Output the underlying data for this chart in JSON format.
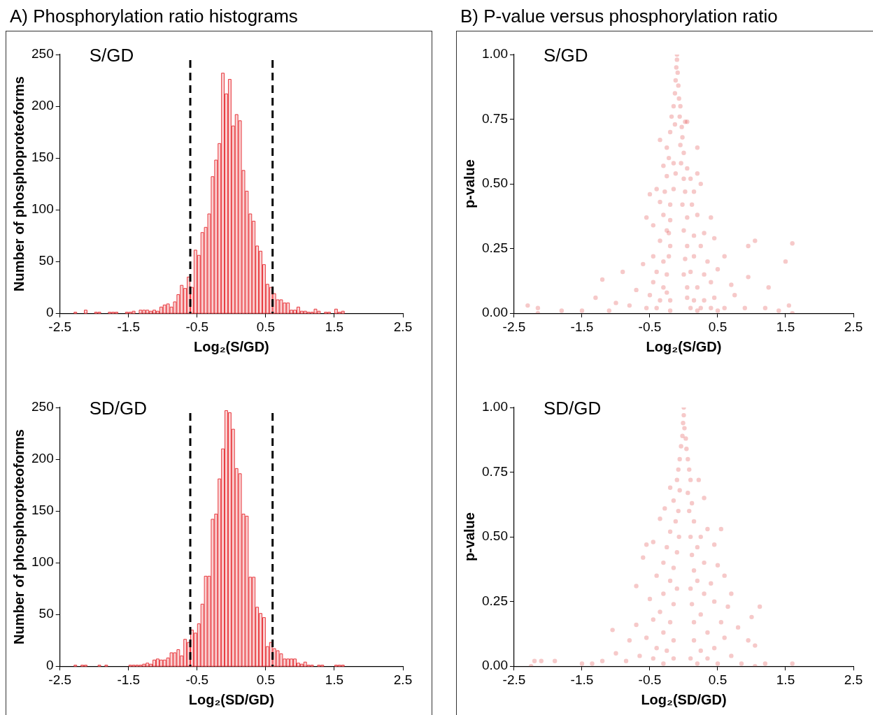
{
  "chart_data": [
    {
      "type": "histogram",
      "title": "A) Phosphorylation ratio histograms",
      "xlabel": "Log₂(S/GD)",
      "ylabel": "Number of phosphoproteoforms",
      "annotations": [
        "S/GD"
      ],
      "color": "#e8383d",
      "bins": [
        -2.5,
        -2.45,
        -2.4,
        -2.35,
        -2.3,
        -2.25,
        -2.2,
        -2.15,
        -2.1,
        -2.05,
        -2,
        -1.95,
        -1.9,
        -1.85,
        -1.8,
        -1.75,
        -1.7,
        -1.65,
        -1.6,
        -1.55,
        -1.5,
        -1.45,
        -1.4,
        -1.35,
        -1.3,
        -1.25,
        -1.2,
        -1.15,
        -1.1,
        -1.05,
        -1,
        -0.95,
        -0.9,
        -0.85,
        -0.8,
        -0.75,
        -0.7,
        -0.65,
        -0.6,
        -0.55,
        -0.5,
        -0.45,
        -0.4,
        -0.35,
        -0.3,
        -0.25,
        -0.2,
        -0.15,
        -0.1,
        -0.05,
        0,
        0.05,
        0.1,
        0.15,
        0.2,
        0.25,
        0.3,
        0.35,
        0.4,
        0.45,
        0.5,
        0.55,
        0.6,
        0.65,
        0.7,
        0.75,
        0.8,
        0.85,
        0.9,
        0.95,
        1,
        1.05,
        1.1,
        1.15,
        1.2,
        1.25,
        1.3,
        1.35,
        1.4,
        1.45,
        1.5,
        1.55,
        1.6,
        1.65,
        1.7,
        1.75,
        1.8,
        1.85,
        1.9,
        1.95,
        2,
        2.05,
        2.1,
        2.15,
        2.2,
        2.25,
        2.3,
        2.35,
        2.4,
        2.45,
        2.5
      ],
      "values": [
        0,
        0,
        0,
        0,
        1,
        0,
        0,
        3,
        0,
        0,
        1,
        1,
        0,
        0,
        1,
        1,
        1,
        0,
        0,
        1,
        1,
        2,
        0,
        3,
        3,
        3,
        2,
        3,
        2,
        6,
        8,
        9,
        6,
        11,
        18,
        27,
        24,
        35,
        25,
        61,
        56,
        78,
        83,
        96,
        132,
        148,
        164,
        232,
        212,
        226,
        181,
        192,
        186,
        138,
        118,
        96,
        89,
        65,
        60,
        47,
        28,
        25,
        19,
        13,
        13,
        10,
        10,
        3,
        3,
        6,
        2,
        2,
        1,
        1,
        4,
        2,
        0,
        1,
        1,
        0,
        4,
        1,
        2,
        0,
        0,
        0,
        0,
        0,
        0,
        0,
        0,
        0,
        0,
        0,
        0,
        0,
        0,
        0,
        0,
        0
      ],
      "xlim": [
        -2.5,
        2.5
      ],
      "xticks": [
        -2.5,
        -1.5,
        -0.5,
        0.5,
        1.5,
        2.5
      ],
      "ylim": [
        0,
        250
      ],
      "yticks": [
        0,
        50,
        100,
        150,
        200,
        250
      ],
      "ref_lines": [
        {
          "axis": "x",
          "value": -0.6,
          "color": "#000000",
          "line_style": "dashed"
        },
        {
          "axis": "x",
          "value": 0.6,
          "color": "#000000",
          "line_style": "dashed"
        }
      ]
    },
    {
      "type": "scatter",
      "title": "B) P-value versus phosphorylation ratio",
      "xlabel": "Log₂(S/GD)",
      "ylabel": "p-value",
      "annotations": [
        "S/GD"
      ],
      "color": "#e03c3c",
      "marker": "circle",
      "x": [
        -0.1,
        -0.1,
        -0.11,
        -0.09,
        -0.12,
        -0.08,
        -0.13,
        -0.07,
        -0.15,
        -0.05,
        -0.18,
        -0.06,
        -0.13,
        -0.03,
        0.02,
        0.05,
        -0.2,
        -0.02,
        -0.35,
        -0.25,
        -0.05,
        0,
        0.2,
        -0.22,
        -0.15,
        -0.04,
        0.05,
        -0.3,
        -0.25,
        -0.12,
        0,
        0.1,
        0.2,
        -0.4,
        -0.28,
        -0.15,
        0.02,
        0.15,
        0.25,
        -0.5,
        -0.35,
        -0.2,
        -0.02,
        0.12,
        -0.3,
        -0.2,
        0.05,
        0.2,
        -0.55,
        -0.45,
        0.4,
        -0.25,
        -0.22,
        0,
        0.15,
        0.3,
        -0.35,
        -0.2,
        0.05,
        0.25,
        0.45,
        1.05,
        1.6,
        0.95,
        -0.45,
        -0.3,
        -0.22,
        0.02,
        0.15,
        0.35,
        0.6,
        1.5,
        -0.6,
        -0.4,
        -0.25,
        0,
        0.1,
        0.3,
        0.5,
        -0.9,
        -0.45,
        -0.3,
        -0.25,
        0.05,
        0.2,
        0.4,
        0.7,
        0.95,
        -1.2,
        -0.7,
        -0.5,
        -0.35,
        -0.2,
        0.05,
        0.15,
        0.3,
        0.45,
        0.75,
        1.25,
        -1.3,
        -1,
        -0.8,
        -0.55,
        -0.4,
        0.1,
        0.25,
        0.4,
        0.6,
        0.9,
        1.55,
        -2.3,
        -2.15,
        -1.8,
        -1.5,
        -1.1,
        -0.2,
        0.2,
        0.5,
        1.2,
        1.4,
        -2.15,
        1.6
      ],
      "values": [
        1,
        0.98,
        0.95,
        0.93,
        0.9,
        0.88,
        0.85,
        0.83,
        0.8,
        0.8,
        0.76,
        0.76,
        0.73,
        0.72,
        0.74,
        0.74,
        0.7,
        0.68,
        0.67,
        0.64,
        0.65,
        0.62,
        0.64,
        0.6,
        0.58,
        0.58,
        0.56,
        0.57,
        0.53,
        0.54,
        0.52,
        0.52,
        0.54,
        0.48,
        0.47,
        0.48,
        0.47,
        0.47,
        0.5,
        0.46,
        0.43,
        0.42,
        0.42,
        0.42,
        0.38,
        0.36,
        0.37,
        0.38,
        0.37,
        0.34,
        0.37,
        0.32,
        0.31,
        0.32,
        0.3,
        0.31,
        0.28,
        0.26,
        0.26,
        0.26,
        0.29,
        0.28,
        0.27,
        0.26,
        0.22,
        0.2,
        0.22,
        0.21,
        0.22,
        0.2,
        0.22,
        0.2,
        0.19,
        0.16,
        0.15,
        0.15,
        0.16,
        0.15,
        0.17,
        0.16,
        0.12,
        0.1,
        0.08,
        0.1,
        0.1,
        0.12,
        0.11,
        0.14,
        0.13,
        0.09,
        0.07,
        0.05,
        0.05,
        0.06,
        0.05,
        0.05,
        0.06,
        0.07,
        0.1,
        0.06,
        0.04,
        0.03,
        0.02,
        0.02,
        0.02,
        0.02,
        0.02,
        0.02,
        0.02,
        0.03,
        0.03,
        0.02,
        0.01,
        0.01,
        0.01,
        0.01,
        0.01,
        0.01,
        0.02,
        0.01,
        0,
        0
      ],
      "xlim": [
        -2.5,
        2.5
      ],
      "xticks": [
        -2.5,
        -1.5,
        -0.5,
        0.5,
        1.5,
        2.5
      ],
      "ylim": [
        0,
        1
      ],
      "yticks": [
        {
          "value": 0,
          "label": "0.00"
        },
        {
          "value": 0.25,
          "label": "0.25"
        },
        {
          "value": 0.5,
          "label": "0.50"
        },
        {
          "value": 0.75,
          "label": "0.75"
        },
        {
          "value": 1,
          "label": "1.00"
        }
      ]
    },
    {
      "type": "histogram",
      "xlabel": "Log₂(SD/GD)",
      "ylabel": "Number of phosphoproteoforms",
      "annotations": [
        "SD/GD"
      ],
      "color": "#e8383d",
      "bins": [
        -2.5,
        -2.45,
        -2.4,
        -2.35,
        -2.3,
        -2.25,
        -2.2,
        -2.15,
        -2.1,
        -2.05,
        -2,
        -1.95,
        -1.9,
        -1.85,
        -1.8,
        -1.75,
        -1.7,
        -1.65,
        -1.6,
        -1.55,
        -1.5,
        -1.45,
        -1.4,
        -1.35,
        -1.3,
        -1.25,
        -1.2,
        -1.15,
        -1.1,
        -1.05,
        -1,
        -0.95,
        -0.9,
        -0.85,
        -0.8,
        -0.75,
        -0.7,
        -0.65,
        -0.6,
        -0.55,
        -0.5,
        -0.45,
        -0.4,
        -0.35,
        -0.3,
        -0.25,
        -0.2,
        -0.15,
        -0.1,
        -0.05,
        0,
        0.05,
        0.1,
        0.15,
        0.2,
        0.25,
        0.3,
        0.35,
        0.4,
        0.45,
        0.5,
        0.55,
        0.6,
        0.65,
        0.7,
        0.75,
        0.8,
        0.85,
        0.9,
        0.95,
        1,
        1.05,
        1.1,
        1.15,
        1.2,
        1.25,
        1.3,
        1.35,
        1.4,
        1.45,
        1.5,
        1.55,
        1.6,
        1.65,
        1.7,
        1.75,
        1.8,
        1.85,
        1.9,
        1.95,
        2,
        2.05,
        2.1,
        2.15,
        2.2,
        2.25,
        2.3,
        2.35,
        2.4,
        2.45,
        2.5
      ],
      "values": [
        0,
        0,
        0,
        0,
        1,
        0,
        1,
        1,
        0,
        0,
        0,
        1,
        0,
        1,
        0,
        0,
        0,
        0,
        0,
        0,
        1,
        1,
        1,
        1,
        2,
        3,
        2,
        6,
        7,
        6,
        6,
        8,
        13,
        13,
        16,
        10,
        26,
        23,
        35,
        32,
        41,
        60,
        87,
        87,
        142,
        147,
        181,
        210,
        247,
        245,
        229,
        191,
        186,
        147,
        145,
        86,
        86,
        57,
        51,
        47,
        19,
        23,
        17,
        15,
        12,
        7,
        7,
        7,
        7,
        3,
        2,
        4,
        1,
        1,
        0,
        1,
        1,
        0,
        0,
        0,
        1,
        1,
        1,
        0,
        0,
        0,
        0,
        0,
        0,
        0,
        0,
        0,
        0,
        0,
        0,
        0,
        0,
        0,
        0,
        0
      ],
      "xlim": [
        -2.5,
        2.5
      ],
      "xticks": [
        -2.5,
        -1.5,
        -0.5,
        0.5,
        1.5,
        2.5
      ],
      "ylim": [
        0,
        250
      ],
      "yticks": [
        0,
        50,
        100,
        150,
        200,
        250
      ],
      "ref_lines": [
        {
          "axis": "x",
          "value": -0.6,
          "color": "#000000",
          "line_style": "dashed"
        },
        {
          "axis": "x",
          "value": 0.6,
          "color": "#000000",
          "line_style": "dashed"
        }
      ]
    },
    {
      "type": "scatter",
      "xlabel": "Log₂(SD/GD)",
      "ylabel": "p-value",
      "annotations": [
        "SD/GD"
      ],
      "color": "#e03c3c",
      "marker": "circle",
      "x": [
        0,
        0,
        -0.01,
        0.01,
        -0.02,
        0.03,
        -0.04,
        0.04,
        -0.06,
        0.06,
        -0.08,
        0.08,
        -0.1,
        0.1,
        0.22,
        -0.2,
        -0.06,
        0.06,
        0.3,
        -0.15,
        0.12,
        -0.28,
        -0.08,
        0.08,
        -0.12,
        0.15,
        -0.35,
        0.35,
        0.55,
        -0.2,
        -0.07,
        0.1,
        0.25,
        -0.55,
        -0.45,
        -0.25,
        0.2,
        0.45,
        -0.1,
        0.12,
        -0.6,
        -0.3,
        0.3,
        0.5,
        -0.15,
        0.15,
        -0.4,
        -0.2,
        0.2,
        0.4,
        0.6,
        -0.1,
        0.1,
        -0.7,
        -0.3,
        0.3,
        0.7,
        -0.5,
        -0.15,
        0.12,
        0.45,
        0.65,
        1.12,
        -0.35,
        0.25,
        1,
        -0.45,
        -0.2,
        0.15,
        0.55,
        -0.7,
        0.8,
        -1.05,
        -0.3,
        0.35,
        -0.55,
        -0.15,
        0.15,
        0.6,
        0.95,
        -0.8,
        1.05,
        -0.4,
        -0.25,
        0.25,
        0.45,
        -1,
        -0.65,
        -0.45,
        -0.15,
        0.1,
        0.35,
        0.7,
        -1.2,
        -0.85,
        -0.3,
        0.2,
        0.5,
        0.85,
        -2.2,
        -2.1,
        -1.9,
        -1.5,
        -1.35,
        1.2,
        1.6,
        -2.25,
        1.05
      ],
      "values": [
        1,
        0.97,
        0.94,
        0.92,
        0.89,
        0.88,
        0.85,
        0.84,
        0.8,
        0.8,
        0.76,
        0.76,
        0.72,
        0.72,
        0.72,
        0.69,
        0.68,
        0.67,
        0.65,
        0.64,
        0.63,
        0.61,
        0.6,
        0.6,
        0.56,
        0.56,
        0.57,
        0.53,
        0.53,
        0.52,
        0.5,
        0.5,
        0.5,
        0.47,
        0.48,
        0.46,
        0.46,
        0.47,
        0.44,
        0.43,
        0.42,
        0.4,
        0.4,
        0.39,
        0.38,
        0.37,
        0.35,
        0.33,
        0.33,
        0.32,
        0.35,
        0.3,
        0.3,
        0.31,
        0.28,
        0.28,
        0.28,
        0.26,
        0.24,
        0.24,
        0.25,
        0.23,
        0.23,
        0.21,
        0.2,
        0.19,
        0.18,
        0.17,
        0.17,
        0.17,
        0.16,
        0.15,
        0.14,
        0.13,
        0.13,
        0.11,
        0.1,
        0.1,
        0.11,
        0.1,
        0.1,
        0.08,
        0.07,
        0.06,
        0.06,
        0.07,
        0.05,
        0.04,
        0.03,
        0.03,
        0.03,
        0.03,
        0.04,
        0.02,
        0.02,
        0.01,
        0.01,
        0.01,
        0.01,
        0.02,
        0.02,
        0.02,
        0.01,
        0.01,
        0.01,
        0.01,
        0,
        0
      ],
      "xlim": [
        -2.5,
        2.5
      ],
      "xticks": [
        -2.5,
        -1.5,
        -0.5,
        0.5,
        1.5,
        2.5
      ],
      "ylim": [
        0,
        1
      ],
      "yticks": [
        {
          "value": 0,
          "label": "0.00"
        },
        {
          "value": 0.25,
          "label": "0.25"
        },
        {
          "value": 0.5,
          "label": "0.50"
        },
        {
          "value": 0.75,
          "label": "0.75"
        },
        {
          "value": 1,
          "label": "1.00"
        }
      ]
    }
  ]
}
